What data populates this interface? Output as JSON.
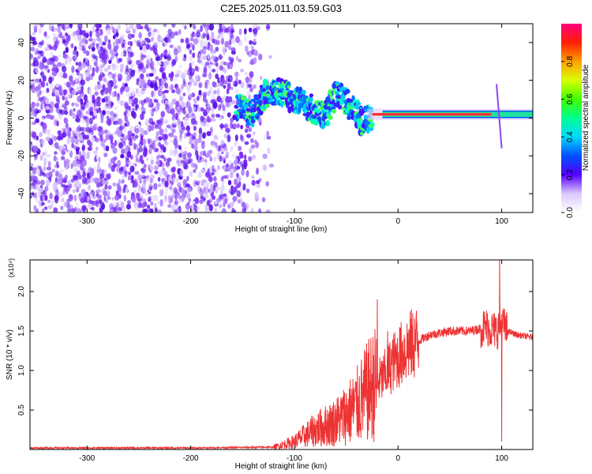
{
  "title": "C2E5.2025.011.03.59.G03",
  "chart_data": [
    {
      "type": "heatmap",
      "title": "C2E5.2025.011.03.59.G03",
      "xlabel": "Height of straight line (km)",
      "ylabel": "Frequency (Hz)",
      "xlim": [
        -355,
        130
      ],
      "ylim": [
        -50,
        50
      ],
      "x_ticks": [
        -300,
        -200,
        -100,
        0,
        100
      ],
      "y_ticks": [
        -40,
        -20,
        0,
        20,
        40
      ],
      "colorbar": {
        "label": "Normalized spectral amplitude",
        "range": [
          0,
          1
        ],
        "ticks": [
          0.0,
          0.2,
          0.4,
          0.6,
          0.8
        ]
      },
      "ridge": {
        "description_points_x": [
          -150,
          -140,
          -130,
          -120,
          -110,
          -100,
          -90,
          -80,
          -70,
          -60,
          -50,
          -40,
          -35,
          -30,
          -20,
          -10,
          0,
          20,
          40,
          60,
          80,
          95,
          100,
          110,
          130
        ],
        "frequency": [
          5,
          3,
          12,
          14,
          13,
          10,
          7,
          4,
          2,
          13,
          8,
          3,
          -2,
          0,
          1,
          2,
          2,
          2,
          2,
          2,
          2,
          3,
          2,
          3,
          3
        ]
      },
      "noise_region_x": [
        -355,
        -140
      ]
    },
    {
      "type": "line",
      "xlabel": "Height of straight line (km)",
      "ylabel": "SNR (10 * v/v)",
      "y_multiplier": "(x10⁴)",
      "xlim": [
        -355,
        130
      ],
      "ylim": [
        0,
        2.4
      ],
      "x_ticks": [
        -300,
        -200,
        -100,
        0,
        100
      ],
      "y_ticks": [
        0.5,
        1.0,
        1.5,
        2.0
      ],
      "color": "#ee3333",
      "envelope_x": [
        -355,
        -200,
        -120,
        -100,
        -80,
        -60,
        -40,
        -25,
        -15,
        -5,
        10,
        30,
        50,
        70,
        85,
        95,
        100,
        105,
        115,
        130
      ],
      "envelope_y": [
        0.02,
        0.02,
        0.03,
        0.1,
        0.25,
        0.35,
        0.55,
        0.8,
        0.9,
        1.1,
        1.3,
        1.45,
        1.5,
        1.5,
        1.55,
        1.5,
        1.6,
        1.5,
        1.45,
        1.42
      ],
      "peaks": [
        {
          "x": -20,
          "y": 1.9
        },
        {
          "x": -10,
          "y": 1.5
        },
        {
          "x": 98,
          "y": 2.4
        },
        {
          "x": 100,
          "y": 0.1
        }
      ]
    }
  ]
}
